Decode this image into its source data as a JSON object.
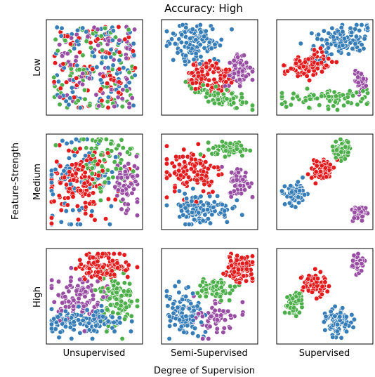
{
  "chart_data": {
    "type": "scatter",
    "title": "Accuracy: High",
    "xlabel": "Degree of Supervision",
    "ylabel": "Feature-Strength",
    "columns": [
      "Unsupervised",
      "Semi-Supervised",
      "Supervised"
    ],
    "rows": [
      "Low",
      "Medium",
      "High"
    ],
    "grid": false,
    "legend": "none",
    "colors": {
      "red": "#e41a1c",
      "blue": "#377eb8",
      "green": "#4daf4a",
      "purple": "#984ea3"
    },
    "panels": [
      {
        "row": "Low",
        "col": "Unsupervised",
        "clusters": [
          {
            "color": "red",
            "n": 85,
            "cx": 0.5,
            "cy": 0.5,
            "sx": 0.3,
            "sy": 0.3,
            "shape": "uniform"
          },
          {
            "color": "blue",
            "n": 85,
            "cx": 0.5,
            "cy": 0.5,
            "sx": 0.3,
            "sy": 0.3,
            "shape": "uniform"
          },
          {
            "color": "green",
            "n": 85,
            "cx": 0.5,
            "cy": 0.5,
            "sx": 0.3,
            "sy": 0.3,
            "shape": "uniform"
          },
          {
            "color": "purple",
            "n": 85,
            "cx": 0.5,
            "cy": 0.5,
            "sx": 0.3,
            "sy": 0.3,
            "shape": "uniform"
          }
        ]
      },
      {
        "row": "Low",
        "col": "Semi-Supervised",
        "clusters": [
          {
            "color": "blue",
            "n": 120,
            "cx": 0.33,
            "cy": 0.77,
            "sx": 0.13,
            "sy": 0.11
          },
          {
            "color": "red",
            "n": 110,
            "cx": 0.5,
            "cy": 0.4,
            "sx": 0.17,
            "sy": 0.11,
            "ring": true
          },
          {
            "color": "purple",
            "n": 70,
            "cx": 0.82,
            "cy": 0.47,
            "sx": 0.07,
            "sy": 0.1
          },
          {
            "color": "green",
            "n": 80,
            "cx": 0.62,
            "cy": 0.16,
            "sx": 0.2,
            "sy": 0.04,
            "tilt": -0.25
          }
        ]
      },
      {
        "row": "Low",
        "col": "Supervised",
        "clusters": [
          {
            "color": "blue",
            "n": 110,
            "cx": 0.66,
            "cy": 0.8,
            "sx": 0.16,
            "sy": 0.09,
            "tilt": 0.3
          },
          {
            "color": "red",
            "n": 100,
            "cx": 0.33,
            "cy": 0.52,
            "sx": 0.13,
            "sy": 0.07,
            "tilt": 0.35
          },
          {
            "color": "green",
            "n": 80,
            "cx": 0.5,
            "cy": 0.15,
            "sx": 0.28,
            "sy": 0.05
          },
          {
            "color": "purple",
            "n": 40,
            "cx": 0.9,
            "cy": 0.35,
            "sx": 0.035,
            "sy": 0.05
          }
        ]
      },
      {
        "row": "Medium",
        "col": "Unsupervised",
        "clusters": [
          {
            "color": "red",
            "n": 140,
            "cx": 0.34,
            "cy": 0.5,
            "sx": 0.17,
            "sy": 0.2
          },
          {
            "color": "blue",
            "n": 80,
            "cx": 0.3,
            "cy": 0.55,
            "sx": 0.2,
            "sy": 0.25
          },
          {
            "color": "green",
            "n": 90,
            "cx": 0.6,
            "cy": 0.7,
            "sx": 0.17,
            "sy": 0.18
          },
          {
            "color": "purple",
            "n": 70,
            "cx": 0.85,
            "cy": 0.45,
            "sx": 0.08,
            "sy": 0.15
          }
        ]
      },
      {
        "row": "Medium",
        "col": "Semi-Supervised",
        "clusters": [
          {
            "color": "green",
            "n": 65,
            "cx": 0.73,
            "cy": 0.87,
            "sx": 0.1,
            "sy": 0.04
          },
          {
            "color": "red",
            "n": 110,
            "cx": 0.3,
            "cy": 0.63,
            "sx": 0.17,
            "sy": 0.14
          },
          {
            "color": "purple",
            "n": 70,
            "cx": 0.84,
            "cy": 0.5,
            "sx": 0.06,
            "sy": 0.08
          },
          {
            "color": "blue",
            "n": 110,
            "cx": 0.4,
            "cy": 0.2,
            "sx": 0.17,
            "sy": 0.09
          }
        ]
      },
      {
        "row": "Medium",
        "col": "Supervised",
        "clusters": [
          {
            "color": "green",
            "n": 60,
            "cx": 0.68,
            "cy": 0.86,
            "sx": 0.05,
            "sy": 0.05
          },
          {
            "color": "red",
            "n": 90,
            "cx": 0.46,
            "cy": 0.63,
            "sx": 0.06,
            "sy": 0.05,
            "tilt": 0.5
          },
          {
            "color": "blue",
            "n": 80,
            "cx": 0.18,
            "cy": 0.35,
            "sx": 0.06,
            "sy": 0.06
          },
          {
            "color": "purple",
            "n": 45,
            "cx": 0.88,
            "cy": 0.14,
            "sx": 0.04,
            "sy": 0.045
          }
        ]
      },
      {
        "row": "High",
        "col": "Unsupervised",
        "clusters": [
          {
            "color": "red",
            "n": 120,
            "cx": 0.62,
            "cy": 0.85,
            "sx": 0.15,
            "sy": 0.08
          },
          {
            "color": "purple",
            "n": 100,
            "cx": 0.3,
            "cy": 0.5,
            "sx": 0.14,
            "sy": 0.13
          },
          {
            "color": "green",
            "n": 100,
            "cx": 0.75,
            "cy": 0.48,
            "sx": 0.1,
            "sy": 0.16
          },
          {
            "color": "blue",
            "n": 130,
            "cx": 0.4,
            "cy": 0.2,
            "sx": 0.22,
            "sy": 0.07
          }
        ]
      },
      {
        "row": "High",
        "col": "Semi-Supervised",
        "clusters": [
          {
            "color": "red",
            "n": 100,
            "cx": 0.84,
            "cy": 0.82,
            "sx": 0.07,
            "sy": 0.07
          },
          {
            "color": "green",
            "n": 70,
            "cx": 0.53,
            "cy": 0.58,
            "sx": 0.1,
            "sy": 0.06
          },
          {
            "color": "blue",
            "n": 110,
            "cx": 0.22,
            "cy": 0.3,
            "sx": 0.09,
            "sy": 0.13
          },
          {
            "color": "purple",
            "n": 60,
            "cx": 0.57,
            "cy": 0.22,
            "sx": 0.12,
            "sy": 0.1
          }
        ]
      },
      {
        "row": "High",
        "col": "Supervised",
        "clusters": [
          {
            "color": "purple",
            "n": 45,
            "cx": 0.87,
            "cy": 0.87,
            "sx": 0.04,
            "sy": 0.045
          },
          {
            "color": "red",
            "n": 80,
            "cx": 0.38,
            "cy": 0.63,
            "sx": 0.065,
            "sy": 0.065
          },
          {
            "color": "green",
            "n": 50,
            "cx": 0.15,
            "cy": 0.42,
            "sx": 0.05,
            "sy": 0.06
          },
          {
            "color": "blue",
            "n": 80,
            "cx": 0.65,
            "cy": 0.2,
            "sx": 0.07,
            "sy": 0.075
          }
        ]
      }
    ]
  }
}
